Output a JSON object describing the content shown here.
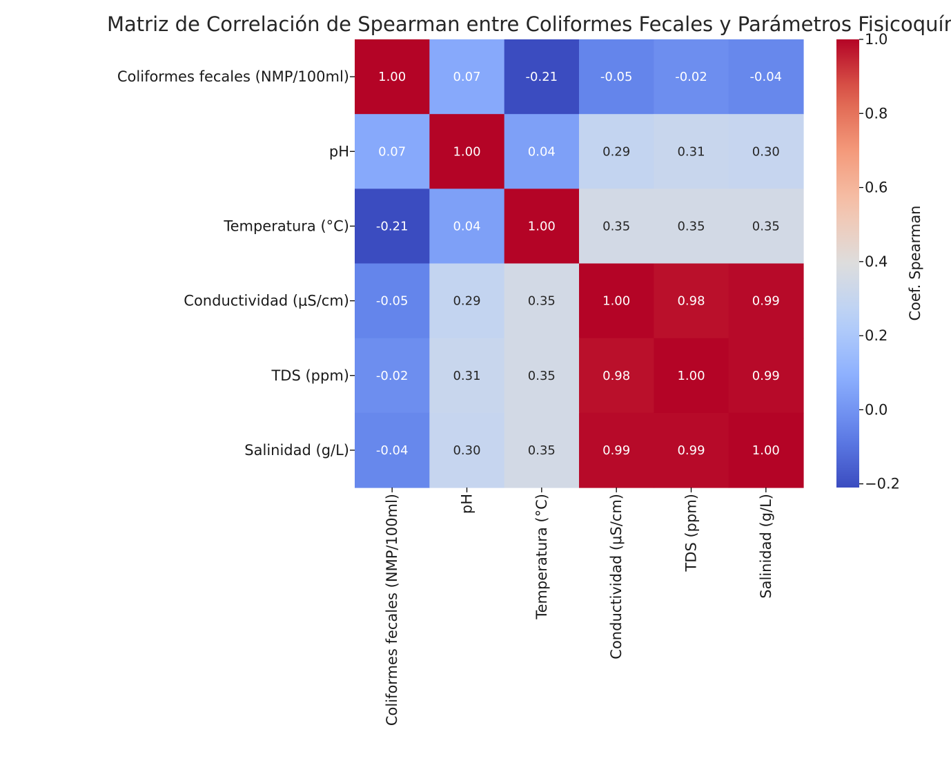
{
  "chart_data": {
    "type": "heatmap",
    "title": "Matriz de Correlación de Spearman entre Coliformes Fecales y Parámetros Fisicoquímicos",
    "row_labels": [
      "Coliformes fecales (NMP/100ml)",
      "pH",
      "Temperatura (°C)",
      "Conductividad (μS/cm)",
      "TDS (ppm)",
      "Salinidad (g/L)"
    ],
    "col_labels": [
      "Coliformes fecales (NMP/100ml)",
      "pH",
      "Temperatura (°C)",
      "Conductividad (μS/cm)",
      "TDS (ppm)",
      "Salinidad (g/L)"
    ],
    "values": [
      [
        1.0,
        0.07,
        -0.21,
        -0.05,
        -0.02,
        -0.04
      ],
      [
        0.07,
        1.0,
        0.04,
        0.29,
        0.31,
        0.3
      ],
      [
        -0.21,
        0.04,
        1.0,
        0.35,
        0.35,
        0.35
      ],
      [
        -0.05,
        0.29,
        0.35,
        1.0,
        0.98,
        0.99
      ],
      [
        -0.02,
        0.31,
        0.35,
        0.98,
        1.0,
        0.99
      ],
      [
        -0.04,
        0.3,
        0.35,
        0.99,
        0.99,
        1.0
      ]
    ],
    "value_format": "2 decimals",
    "colormap": "coolwarm",
    "vmin": -0.21,
    "vmax": 1.0,
    "colorbar": {
      "label": "Coef. Spearman",
      "ticks": [
        -0.2,
        0.0,
        0.2,
        0.4,
        0.6,
        0.8,
        1.0
      ],
      "tick_labels": [
        "−0.2",
        "0.0",
        "0.2",
        "0.4",
        "0.6",
        "0.8",
        "1.0"
      ],
      "placement": "right"
    },
    "grid": false
  }
}
